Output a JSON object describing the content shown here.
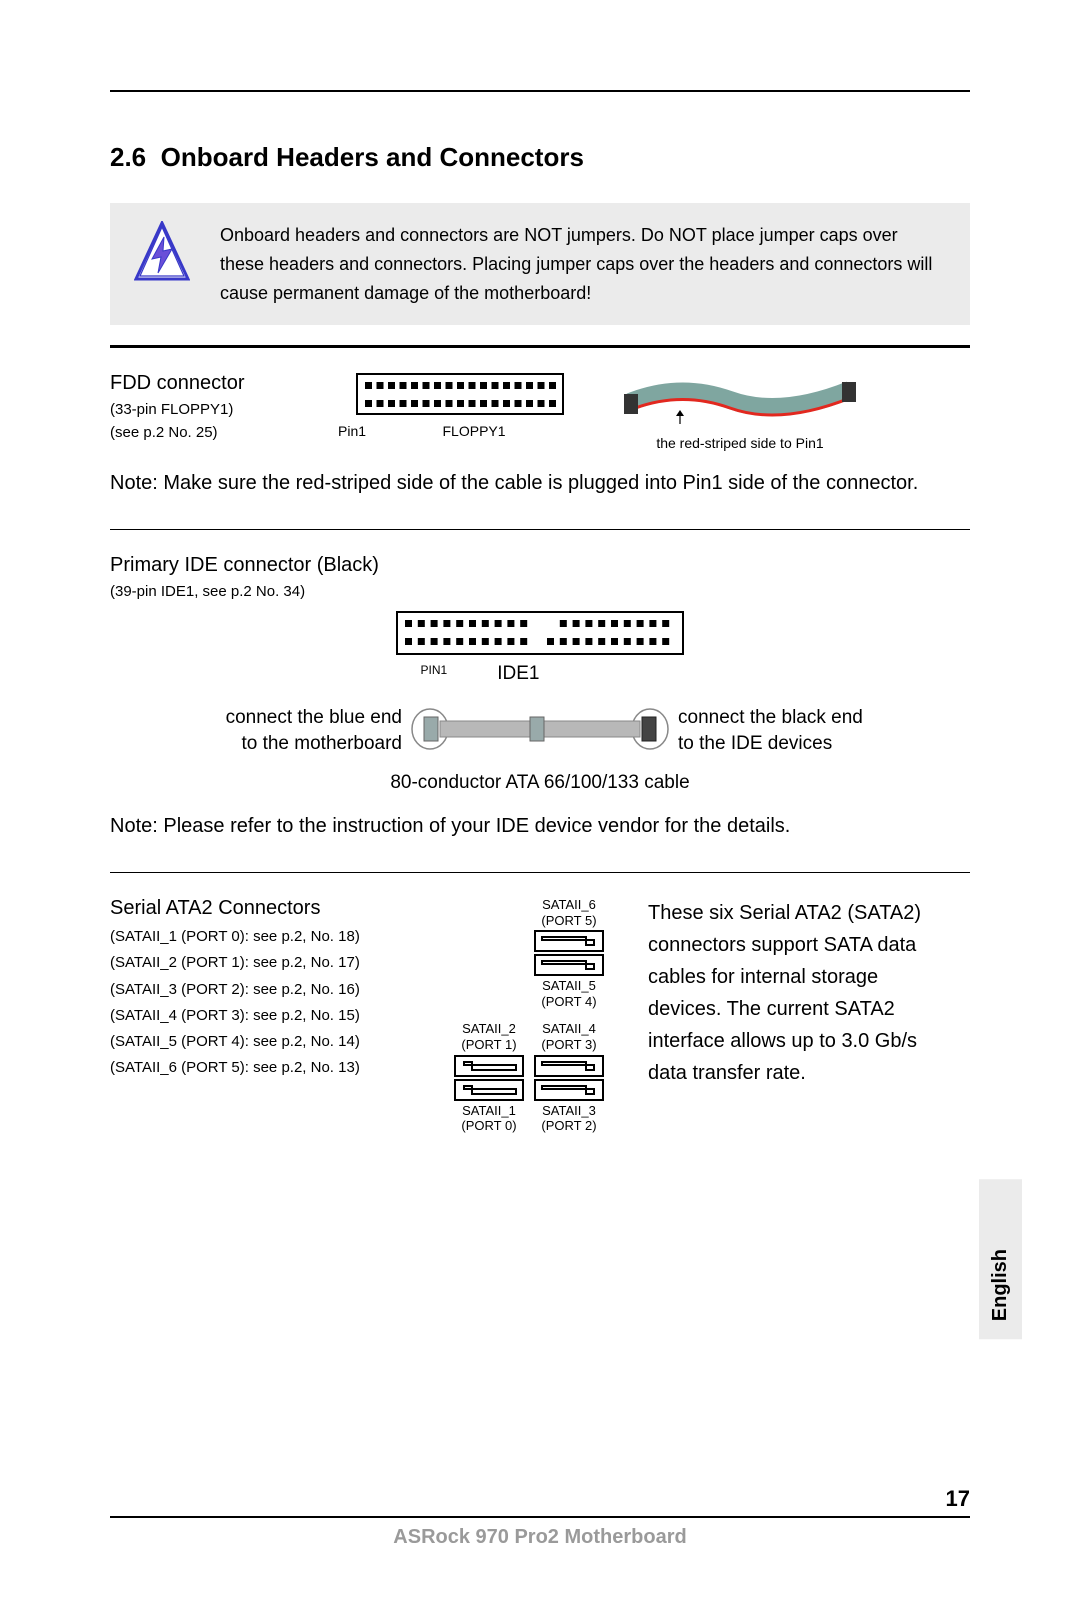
{
  "section": {
    "number": "2.6",
    "title": "Onboard Headers and Connectors"
  },
  "warning": {
    "text": "Onboard headers and connectors are NOT jumpers. Do NOT place jumper caps over these headers and connectors. Placing jumper caps over the headers and connectors will cause permanent damage of the motherboard!",
    "icon_stroke": "#3838c8",
    "icon_fill": "#ffffff"
  },
  "fdd": {
    "title": "FDD connector",
    "pins": "(33-pin FLOPPY1)",
    "ref": "(see p.2  No. 25)",
    "diagram": {
      "label_left": "Pin1",
      "label_right": "FLOPPY1",
      "cols": 17,
      "rows": 2
    },
    "cable_colors": {
      "ribbon": "#7fa6a0",
      "stripe": "#e2281f"
    },
    "cable_caption": "the red-striped side to Pin1",
    "note": "Note:  Make sure the red-striped side of the cable is plugged into Pin1 side of the connector."
  },
  "ide": {
    "title": "Primary IDE connector (Black)",
    "pins": "(39-pin IDE1, see p.2 No. 34)",
    "diagram": {
      "label_left": "PIN1",
      "label_right": "IDE1",
      "groups": 2,
      "cols_per_group": 10,
      "rows": 2
    },
    "left_label_line1": "connect the blue end",
    "left_label_line2": "to the motherboard",
    "right_label_line1": "connect  the black end",
    "right_label_line2": "to the IDE devices",
    "cable_caption": "80-conductor ATA 66/100/133 cable",
    "cable_color": "#b8b8b8",
    "note": "Note:  Please refer to the instruction of your IDE device vendor for the details."
  },
  "sata": {
    "title": "Serial ATA2 Connectors",
    "ports": [
      "(SATAII_1 (PORT 0): see  p.2, No. 18)",
      "(SATAII_2 (PORT 1): see  p.2, No. 17)",
      "(SATAII_3 (PORT 2): see  p.2, No. 16)",
      "(SATAII_4 (PORT 3): see  p.2, No. 15)",
      "(SATAII_5 (PORT 4): see  p.2, No. 14)",
      "(SATAII_6 (PORT 5): see  p.2, No. 13)"
    ],
    "labels": {
      "p6": "SATAII_6",
      "p6s": "(PORT 5)",
      "p5": "SATAII_5",
      "p5s": "(PORT 4)",
      "p2": "SATAII_2",
      "p2s": "(PORT 1)",
      "p4": "SATAII_4",
      "p4s": "(PORT 3)",
      "p1": "SATAII_1",
      "p1s": "(PORT 0)",
      "p3": "SATAII_3",
      "p3s": "(PORT 2)"
    },
    "description": "These six Serial ATA2 (SATA2) connectors support SATA data cables for internal storage devices. The current SATA2 interface allows up to 3.0 Gb/s data transfer rate."
  },
  "language_tab": "English",
  "footer": {
    "text": "ASRock  970 Pro2  Motherboard",
    "page": "17"
  }
}
